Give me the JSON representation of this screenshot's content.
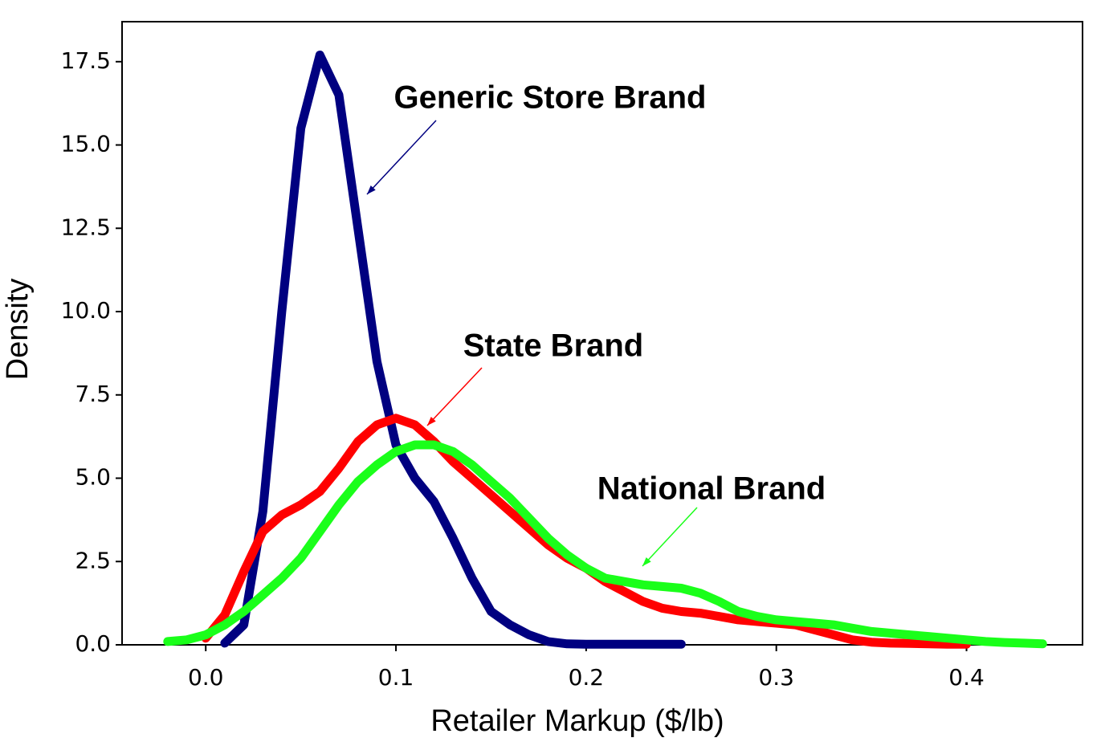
{
  "chart_data": {
    "type": "line",
    "xlabel": "Retailer Markup ($/lb)",
    "ylabel": "Density",
    "x": [
      -0.02,
      -0.01,
      0.0,
      0.01,
      0.02,
      0.03,
      0.04,
      0.05,
      0.06,
      0.07,
      0.08,
      0.09,
      0.1,
      0.11,
      0.12,
      0.13,
      0.14,
      0.15,
      0.16,
      0.17,
      0.18,
      0.19,
      0.2,
      0.21,
      0.22,
      0.23,
      0.24,
      0.25,
      0.26,
      0.27,
      0.28,
      0.29,
      0.3,
      0.31,
      0.32,
      0.33,
      0.34,
      0.35,
      0.36,
      0.37,
      0.38,
      0.39,
      0.4,
      0.41,
      0.42,
      0.43,
      0.44
    ],
    "series": [
      {
        "name": "Generic Store Brand",
        "color": "#000080",
        "values": [
          null,
          null,
          null,
          0.05,
          0.6,
          4,
          10,
          15.5,
          17.7,
          16.5,
          12.5,
          8.5,
          6.0,
          5.0,
          4.3,
          3.2,
          2.0,
          1.0,
          0.6,
          0.3,
          0.1,
          0.03,
          0.02,
          0.02,
          0.02,
          0.02,
          0.02,
          0.02,
          null,
          null,
          null,
          null,
          null,
          null,
          null,
          null,
          null,
          null,
          null,
          null,
          null,
          null,
          null,
          null,
          null,
          null,
          null
        ]
      },
      {
        "name": "State Brand",
        "color": "#ff0000",
        "values": [
          null,
          null,
          0.2,
          0.9,
          2.2,
          3.4,
          3.9,
          4.2,
          4.6,
          5.3,
          6.1,
          6.6,
          6.8,
          6.6,
          6.1,
          5.5,
          5.0,
          4.5,
          4.0,
          3.5,
          3.0,
          2.6,
          2.3,
          1.9,
          1.6,
          1.3,
          1.1,
          1.0,
          0.95,
          0.85,
          0.75,
          0.7,
          0.65,
          0.6,
          0.45,
          0.3,
          0.15,
          0.08,
          0.05,
          0.04,
          0.03,
          0.02,
          0.02,
          null,
          null,
          null,
          null
        ]
      },
      {
        "name": "National Brand",
        "color": "#1aff1a",
        "values": [
          0.1,
          0.15,
          0.3,
          0.6,
          1.0,
          1.5,
          2.0,
          2.6,
          3.4,
          4.2,
          4.9,
          5.4,
          5.8,
          6.0,
          6.0,
          5.8,
          5.4,
          4.9,
          4.4,
          3.8,
          3.2,
          2.7,
          2.3,
          2.0,
          1.9,
          1.8,
          1.75,
          1.7,
          1.55,
          1.3,
          1.0,
          0.85,
          0.75,
          0.7,
          0.65,
          0.6,
          0.5,
          0.4,
          0.35,
          0.3,
          0.25,
          0.2,
          0.15,
          0.1,
          0.07,
          0.05,
          0.03
        ]
      }
    ],
    "xlim": [
      -0.044,
      0.461
    ],
    "ylim": [
      0,
      18.7
    ],
    "xticks": [
      {
        "value": 0,
        "label": "0.0"
      },
      0.1,
      0.2,
      0.3,
      0.4
    ],
    "yticks": [
      {
        "value": 0,
        "label": "0.0"
      },
      2.5,
      {
        "value": 5,
        "label": "5.0"
      },
      7.5,
      {
        "value": 10,
        "label": "10.0"
      },
      12.5,
      {
        "value": 15,
        "label": "15.0"
      },
      17.5
    ],
    "line_width": 11
  }
}
